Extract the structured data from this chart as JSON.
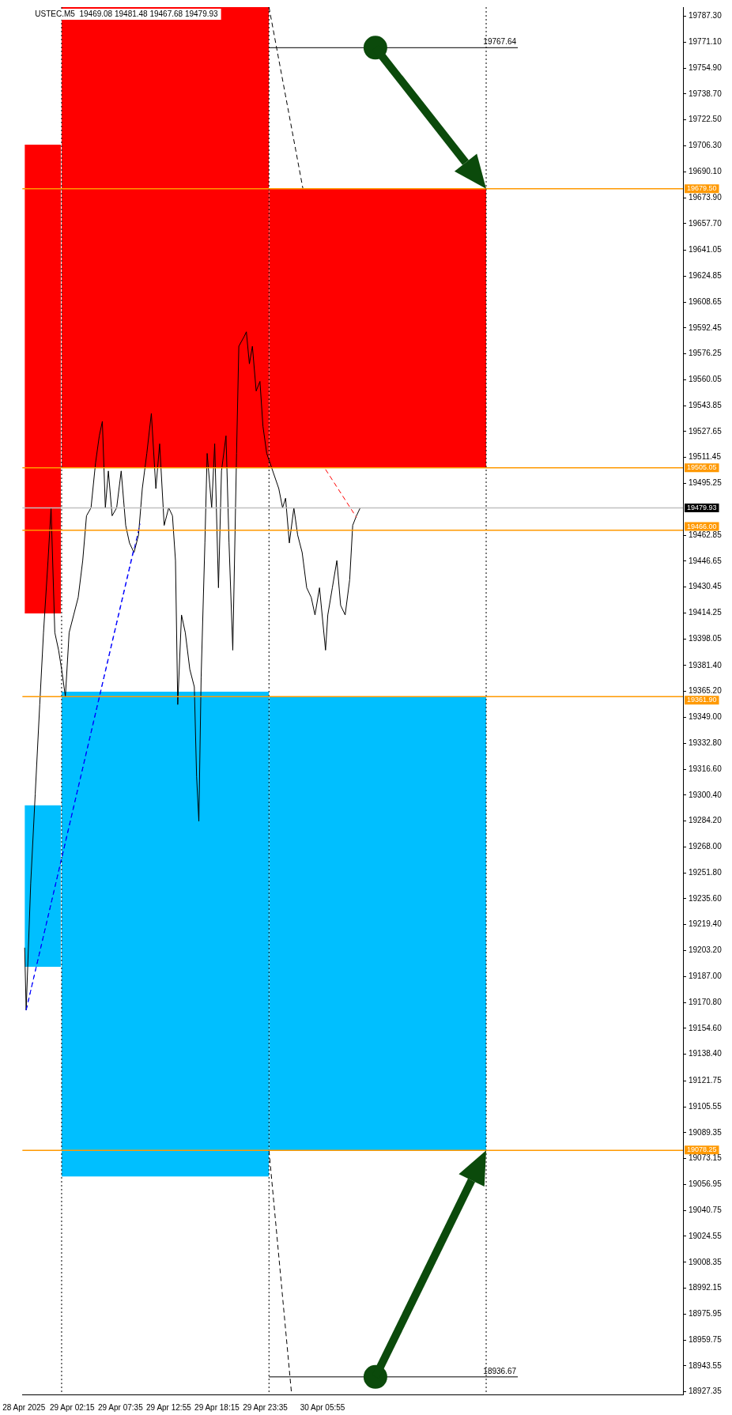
{
  "chart_data": {
    "type": "line",
    "title": "USTEC.M5  19469.08 19481.48 19467.68 19479.93",
    "xlim": [
      "2025-04-28T20:45",
      "2025-05-01T21:45"
    ],
    "ylim": [
      18925.7,
      19793
    ],
    "xticks": [
      {
        "value": "2025-04-28T20:55",
        "label": "28 Apr 2025"
      },
      {
        "value": "2025-04-29T02:15",
        "label": "29 Apr 02:15"
      },
      {
        "value": "2025-04-29T07:35",
        "label": "29 Apr 07:35"
      },
      {
        "value": "2025-04-29T12:55",
        "label": "29 Apr 12:55"
      },
      {
        "value": "2025-04-29T18:15",
        "label": "29 Apr 18:15"
      },
      {
        "value": "2025-04-29T23:35",
        "label": "29 Apr 23:35"
      },
      {
        "value": "2025-04-30T05:55",
        "label": "30 Apr 05:55"
      }
    ],
    "yticks": [
      {
        "value": 19787.3,
        "label": "19787.30"
      },
      {
        "value": 19771.1,
        "label": "19771.10"
      },
      {
        "value": 19754.9,
        "label": "19754.90"
      },
      {
        "value": 19738.7,
        "label": "19738.70"
      },
      {
        "value": 19722.5,
        "label": "19722.50"
      },
      {
        "value": 19706.3,
        "label": "19706.30"
      },
      {
        "value": 19690.1,
        "label": "19690.10"
      },
      {
        "value": 19673.9,
        "label": "19673.90"
      },
      {
        "value": 19657.7,
        "label": "19657.70"
      },
      {
        "value": 19641.05,
        "label": "19641.05"
      },
      {
        "value": 19624.85,
        "label": "19624.85"
      },
      {
        "value": 19608.65,
        "label": "19608.65"
      },
      {
        "value": 19592.45,
        "label": "19592.45"
      },
      {
        "value": 19576.25,
        "label": "19576.25"
      },
      {
        "value": 19560.05,
        "label": "19560.05"
      },
      {
        "value": 19543.85,
        "label": "19543.85"
      },
      {
        "value": 19527.65,
        "label": "19527.65"
      },
      {
        "value": 19511.45,
        "label": "19511.45"
      },
      {
        "value": 19495.25,
        "label": "19495.25"
      },
      {
        "value": 19462.85,
        "label": "19462.85"
      },
      {
        "value": 19446.65,
        "label": "19446.65"
      },
      {
        "value": 19430.45,
        "label": "19430.45"
      },
      {
        "value": 19414.25,
        "label": "19414.25"
      },
      {
        "value": 19398.05,
        "label": "19398.05"
      },
      {
        "value": 19381.4,
        "label": "19381.40"
      },
      {
        "value": 19365.2,
        "label": "19365.20"
      },
      {
        "value": 19349,
        "label": "19349.00"
      },
      {
        "value": 19332.8,
        "label": "19332.80"
      },
      {
        "value": 19316.6,
        "label": "19316.60"
      },
      {
        "value": 19300.4,
        "label": "19300.40"
      },
      {
        "value": 19284.2,
        "label": "19284.20"
      },
      {
        "value": 19268,
        "label": "19268.00"
      },
      {
        "value": 19251.8,
        "label": "19251.80"
      },
      {
        "value": 19235.6,
        "label": "19235.60"
      },
      {
        "value": 19219.4,
        "label": "19219.40"
      },
      {
        "value": 19203.2,
        "label": "19203.20"
      },
      {
        "value": 19187,
        "label": "19187.00"
      },
      {
        "value": 19170.8,
        "label": "19170.80"
      },
      {
        "value": 19154.6,
        "label": "19154.60"
      },
      {
        "value": 19138.4,
        "label": "19138.40"
      },
      {
        "value": 19121.75,
        "label": "19121.75"
      },
      {
        "value": 19105.55,
        "label": "19105.55"
      },
      {
        "value": 19089.35,
        "label": "19089.35"
      },
      {
        "value": 19073.15,
        "label": "19073.15"
      },
      {
        "value": 19056.95,
        "label": "19056.95"
      },
      {
        "value": 19040.75,
        "label": "19040.75"
      },
      {
        "value": 19024.55,
        "label": "19024.55"
      },
      {
        "value": 19008.35,
        "label": "19008.35"
      },
      {
        "value": 18992.15,
        "label": "18992.15"
      },
      {
        "value": 18975.95,
        "label": "18975.95"
      },
      {
        "value": 18959.75,
        "label": "18959.75"
      },
      {
        "value": 18943.55,
        "label": "18943.55"
      },
      {
        "value": 18927.35,
        "label": "18927.35"
      }
    ],
    "grid": false,
    "legend": false,
    "marker": "none",
    "series": [
      {
        "type": "area",
        "color": "#ff0000",
        "x": [
          "2025-04-28T21:00",
          "2025-04-29T01:00"
        ],
        "values": [
          null,
          null
        ],
        "lower": [
          19414,
          19414
        ],
        "upper": [
          19707,
          19707
        ]
      },
      {
        "type": "area",
        "color": "#ff0000",
        "x": [
          "2025-04-29T01:05",
          "2025-04-30T00:00"
        ],
        "values": [
          null,
          null
        ],
        "lower": [
          19505.05,
          19505.05
        ],
        "upper": [
          19793,
          19793
        ]
      },
      {
        "type": "area",
        "color": "#ff0000",
        "x": [
          "2025-04-30T00:00",
          "2025-05-01T00:00"
        ],
        "values": [
          null,
          null
        ],
        "lower": [
          19505.05,
          19505.05
        ],
        "upper": [
          19679.5,
          19679.5
        ]
      },
      {
        "type": "area",
        "color": "#00bfff",
        "x": [
          "2025-04-28T21:00",
          "2025-04-29T01:00"
        ],
        "values": [
          null,
          null
        ],
        "lower": [
          19193,
          19193
        ],
        "upper": [
          19294,
          19294
        ]
      },
      {
        "type": "area",
        "color": "#00bfff",
        "x": [
          "2025-04-29T01:05",
          "2025-04-30T00:00"
        ],
        "values": [
          null,
          null
        ],
        "lower": [
          19062,
          19062
        ],
        "upper": [
          19365,
          19365
        ]
      },
      {
        "type": "area",
        "color": "#00bfff",
        "x": [
          "2025-04-30T00:00",
          "2025-05-01T00:00"
        ],
        "values": [
          null,
          null
        ],
        "lower": [
          19078.25,
          19078.25
        ],
        "upper": [
          19361.9,
          19361.9
        ]
      },
      {
        "type": "line",
        "color": "#000000",
        "line_style": "dashed",
        "x": [
          "2025-04-30T00:00",
          "2025-04-30T03:45"
        ],
        "values": [
          19793,
          19679.5
        ]
      },
      {
        "type": "line",
        "color": "#000000",
        "line_style": "dashed",
        "x": [
          "2025-04-30T00:00",
          "2025-04-30T02:30"
        ],
        "values": [
          19078.25,
          18925.7
        ]
      },
      {
        "type": "line",
        "color": "#0000ff",
        "line_style": "dashed",
        "x": [
          "2025-04-28T21:10",
          "2025-04-29T09:45"
        ],
        "values": [
          19166,
          19470
        ]
      },
      {
        "type": "line",
        "color": "#0000ff",
        "line_style": "dashed",
        "x": [
          "2025-04-28T21:10",
          "2025-04-29T09:05"
        ],
        "values": [
          19166,
          19455
        ]
      },
      {
        "type": "line",
        "color": "#ff0000",
        "line_style": "dashed",
        "x": [
          "2025-04-30T06:15",
          "2025-04-30T09:40"
        ],
        "values": [
          19504,
          19474
        ]
      },
      {
        "type": "line",
        "color": "#000000",
        "x": [
          "2025-04-30T00:00",
          "2025-05-01T03:30"
        ],
        "values": [
          19767.64,
          19767.64
        ]
      },
      {
        "type": "line",
        "color": "#000000",
        "x": [
          "2025-04-30T00:00",
          "2025-05-01T03:30"
        ],
        "values": [
          18936.67,
          18936.67
        ]
      },
      {
        "type": "line",
        "color": "#000000",
        "x": [
          "2025-04-28T21:00",
          "2025-04-28T21:10",
          "2025-04-28T21:40",
          "2025-04-28T22:10",
          "2025-04-28T22:40",
          "2025-04-28T23:05",
          "2025-04-28T23:35",
          "2025-04-28T23:55",
          "2025-04-29T00:20",
          "2025-04-29T00:45",
          "2025-04-29T01:05",
          "2025-04-29T01:30",
          "2025-04-29T01:55",
          "2025-04-29T02:25",
          "2025-04-29T02:55",
          "2025-04-29T03:25",
          "2025-04-29T03:50",
          "2025-04-29T04:20",
          "2025-04-29T04:50",
          "2025-04-29T05:15",
          "2025-04-29T05:35",
          "2025-04-29T05:55",
          "2025-04-29T06:15",
          "2025-04-29T06:40",
          "2025-04-29T07:10",
          "2025-04-29T07:40",
          "2025-04-29T08:10",
          "2025-04-29T08:35",
          "2025-04-29T09:05",
          "2025-04-29T09:35",
          "2025-04-29T10:00",
          "2025-04-29T10:30",
          "2025-04-29T11:00",
          "2025-04-29T11:30",
          "2025-04-29T11:55",
          "2025-04-29T12:25",
          "2025-04-29T12:55",
          "2025-04-29T13:20",
          "2025-04-29T13:40",
          "2025-04-29T13:55",
          "2025-04-29T14:20",
          "2025-04-29T14:45",
          "2025-04-29T15:15",
          "2025-04-29T15:45",
          "2025-04-29T16:00",
          "2025-04-29T16:15",
          "2025-04-29T16:30",
          "2025-04-29T16:55",
          "2025-04-29T17:10",
          "2025-04-29T17:40",
          "2025-04-29T18:00",
          "2025-04-29T18:25",
          "2025-04-29T18:45",
          "2025-04-29T19:15",
          "2025-04-29T19:35",
          "2025-04-29T20:00",
          "2025-04-29T20:25",
          "2025-04-29T20:40",
          "2025-04-29T21:15",
          "2025-04-29T21:30",
          "2025-04-29T21:50",
          "2025-04-29T22:10",
          "2025-04-29T22:35",
          "2025-04-29T23:00",
          "2025-04-29T23:20",
          "2025-04-29T23:45",
          "2025-04-30T01:05",
          "2025-04-30T01:30",
          "2025-04-30T01:50",
          "2025-04-30T02:15",
          "2025-04-30T02:45",
          "2025-04-30T03:10",
          "2025-04-30T03:40",
          "2025-04-30T04:10",
          "2025-04-30T04:40",
          "2025-04-30T05:05",
          "2025-04-30T05:35",
          "2025-04-30T06:15",
          "2025-04-30T06:30",
          "2025-04-30T07:00",
          "2025-04-30T07:30",
          "2025-04-30T07:55",
          "2025-04-30T08:25",
          "2025-04-30T08:55",
          "2025-04-30T09:15",
          "2025-04-30T09:40",
          "2025-04-30T10:05"
        ],
        "values": [
          19205,
          19166,
          19245,
          19301,
          19357,
          19402,
          19447,
          19480,
          19402,
          19391,
          19379,
          19362,
          19402,
          19413,
          19424,
          19447,
          19475,
          19480,
          19508,
          19525,
          19534,
          19480,
          19503,
          19475,
          19480,
          19503,
          19469,
          19458,
          19452,
          19463,
          19492,
          19514,
          19539,
          19492,
          19520,
          19469,
          19480,
          19475,
          19447,
          19357,
          19413,
          19402,
          19379,
          19368,
          19312,
          19284,
          19374,
          19458,
          19514,
          19480,
          19520,
          19430,
          19503,
          19525,
          19458,
          19391,
          19514,
          19581,
          19587,
          19590,
          19570,
          19581,
          19553,
          19559,
          19531,
          19514,
          19492,
          19480,
          19486,
          19458,
          19480,
          19463,
          19452,
          19430,
          19424,
          19413,
          19430,
          19391,
          19413,
          19430,
          19447,
          19419,
          19413,
          19435,
          19469,
          19475,
          19480
        ]
      }
    ],
    "ref_lines": [
      {
        "axis": "x",
        "value": "2025-04-29T01:05",
        "color": "#000000",
        "line_style": "dotted"
      },
      {
        "axis": "x",
        "value": "2025-04-30T00:00",
        "color": "#000000",
        "line_style": "dotted"
      },
      {
        "axis": "x",
        "value": "2025-05-01T00:00",
        "color": "#000000",
        "line_style": "dotted"
      },
      {
        "axis": "y",
        "value": 19679.5,
        "label": "19679.50",
        "color": "#ff9900"
      },
      {
        "axis": "y",
        "value": 19505.05,
        "label": "19505.05",
        "color": "#ff9900"
      },
      {
        "axis": "y",
        "value": 19479.93,
        "label": "19479.93",
        "color": "#c0c0c0"
      },
      {
        "axis": "y",
        "value": 19466,
        "label": "19466.00",
        "color": "#ff9900"
      },
      {
        "axis": "y",
        "value": 19361.9,
        "label": "19361.90",
        "color": "#ff9900"
      },
      {
        "axis": "y",
        "value": 19078.25,
        "label": "19078.25",
        "color": "#ff9900"
      }
    ],
    "annotations": [
      {
        "text": "19767.64",
        "x": "2025-05-01T03:30",
        "y": 19767.64
      },
      {
        "text": "18936.67",
        "x": "2025-05-01T03:30",
        "y": 18936.67
      }
    ]
  }
}
